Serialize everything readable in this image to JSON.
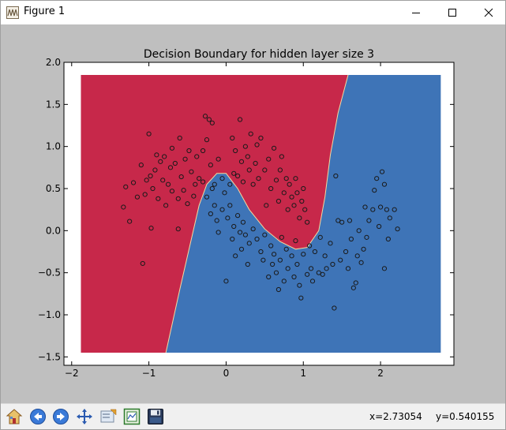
{
  "window": {
    "title": "Figure 1"
  },
  "chart_data": {
    "type": "scatter",
    "title": "Decision Boundary for hidden layer size 3",
    "xlim": [
      -2.1,
      2.95
    ],
    "ylim": [
      -1.6,
      2.0
    ],
    "x_ticks": [
      -2,
      -1,
      0,
      1,
      2
    ],
    "y_ticks": [
      -1.5,
      -1.0,
      -0.5,
      0.0,
      0.5,
      1.0,
      1.5,
      2.0
    ],
    "x_tick_labels": [
      "−2",
      "−1",
      "0",
      "1",
      "2"
    ],
    "y_tick_labels": [
      "−1.5",
      "−1.0",
      "−0.5",
      "0.0",
      "0.5",
      "1.0",
      "1.5",
      "2.0"
    ],
    "region_extent": {
      "x": [
        -1.88,
        2.78
      ],
      "y": [
        -1.45,
        1.85
      ]
    },
    "region_colors": {
      "class_0": "#c7284a",
      "class_1": "#3e74b7"
    },
    "boundary": [
      [
        -0.78,
        -1.45
      ],
      [
        -0.6,
        -0.7
      ],
      [
        -0.45,
        -0.1
      ],
      [
        -0.35,
        0.3
      ],
      [
        -0.25,
        0.55
      ],
      [
        -0.12,
        0.68
      ],
      [
        0.0,
        0.68
      ],
      [
        0.15,
        0.5
      ],
      [
        0.3,
        0.25
      ],
      [
        0.5,
        0.02
      ],
      [
        0.7,
        -0.13
      ],
      [
        0.9,
        -0.22
      ],
      [
        1.05,
        -0.2
      ],
      [
        1.2,
        0.0
      ],
      [
        1.28,
        0.4
      ],
      [
        1.35,
        0.9
      ],
      [
        1.45,
        1.4
      ],
      [
        1.58,
        1.85
      ]
    ],
    "point_color": "#1a1a1a",
    "points": [
      [
        -1.33,
        0.28
      ],
      [
        -1.3,
        0.52
      ],
      [
        -1.25,
        0.11
      ],
      [
        -1.2,
        0.57
      ],
      [
        -1.15,
        0.4
      ],
      [
        -1.1,
        0.78
      ],
      [
        -1.08,
        -0.39
      ],
      [
        -1.05,
        0.43
      ],
      [
        -1.03,
        0.6
      ],
      [
        -1.0,
        1.15
      ],
      [
        -0.98,
        0.65
      ],
      [
        -0.97,
        0.03
      ],
      [
        -0.95,
        0.5
      ],
      [
        -0.92,
        0.72
      ],
      [
        -0.9,
        0.9
      ],
      [
        -0.88,
        0.38
      ],
      [
        -0.85,
        0.82
      ],
      [
        -0.82,
        0.6
      ],
      [
        -0.8,
        0.88
      ],
      [
        -0.78,
        0.3
      ],
      [
        -0.75,
        0.55
      ],
      [
        -0.72,
        0.75
      ],
      [
        -0.7,
        0.98
      ],
      [
        -0.7,
        0.47
      ],
      [
        -0.66,
        0.8
      ],
      [
        -0.62,
        0.38
      ],
      [
        -0.6,
        1.1
      ],
      [
        -0.58,
        0.64
      ],
      [
        -0.55,
        0.48
      ],
      [
        -0.53,
        0.85
      ],
      [
        -0.5,
        0.32
      ],
      [
        -0.48,
        0.95
      ],
      [
        -0.45,
        0.7
      ],
      [
        -0.42,
        0.41
      ],
      [
        -0.4,
        0.55
      ],
      [
        -0.38,
        0.88
      ],
      [
        -0.35,
        0.62
      ],
      [
        -0.3,
        0.95
      ],
      [
        -0.27,
        1.36
      ],
      [
        -0.25,
        1.08
      ],
      [
        -0.22,
        1.32
      ],
      [
        -0.2,
        0.78
      ],
      [
        -0.18,
        1.28
      ],
      [
        -0.15,
        0.55
      ],
      [
        -0.1,
        0.85
      ],
      [
        -0.05,
        0.62
      ],
      [
        0.05,
        0.55
      ],
      [
        0.08,
        1.1
      ],
      [
        0.1,
        0.68
      ],
      [
        0.12,
        0.95
      ],
      [
        0.15,
        0.65
      ],
      [
        0.18,
        1.32
      ],
      [
        0.2,
        0.82
      ],
      [
        0.22,
        0.58
      ],
      [
        0.25,
        1.0
      ],
      [
        0.28,
        0.88
      ],
      [
        0.3,
        0.72
      ],
      [
        0.32,
        1.15
      ],
      [
        0.35,
        0.55
      ],
      [
        0.38,
        0.8
      ],
      [
        0.4,
        1.02
      ],
      [
        0.42,
        0.62
      ],
      [
        0.45,
        1.1
      ],
      [
        0.5,
        0.72
      ],
      [
        0.52,
        0.3
      ],
      [
        0.55,
        0.85
      ],
      [
        0.58,
        0.5
      ],
      [
        0.62,
        0.98
      ],
      [
        0.65,
        0.6
      ],
      [
        0.68,
        0.35
      ],
      [
        0.7,
        0.72
      ],
      [
        0.72,
        0.88
      ],
      [
        0.75,
        0.45
      ],
      [
        0.78,
        0.62
      ],
      [
        0.8,
        0.25
      ],
      [
        0.82,
        0.55
      ],
      [
        0.85,
        0.4
      ],
      [
        0.88,
        0.3
      ],
      [
        0.9,
        0.62
      ],
      [
        0.92,
        0.45
      ],
      [
        0.95,
        0.15
      ],
      [
        0.98,
        0.35
      ],
      [
        1.0,
        0.5
      ],
      [
        1.02,
        0.25
      ],
      [
        1.05,
        0.1
      ],
      [
        -0.62,
        0.02
      ],
      [
        -0.3,
        0.58
      ],
      [
        -0.25,
        0.4
      ],
      [
        -0.2,
        0.2
      ],
      [
        -0.18,
        0.5
      ],
      [
        -0.15,
        0.3
      ],
      [
        -0.12,
        0.12
      ],
      [
        -0.1,
        -0.02
      ],
      [
        -0.05,
        0.25
      ],
      [
        -0.02,
        0.45
      ],
      [
        0.0,
        -0.6
      ],
      [
        0.02,
        0.15
      ],
      [
        0.05,
        0.3
      ],
      [
        0.08,
        -0.1
      ],
      [
        0.1,
        0.05
      ],
      [
        0.12,
        -0.3
      ],
      [
        0.15,
        0.18
      ],
      [
        0.18,
        -0.02
      ],
      [
        0.2,
        -0.22
      ],
      [
        0.22,
        0.1
      ],
      [
        0.25,
        -0.05
      ],
      [
        0.28,
        -0.4
      ],
      [
        0.3,
        -0.15
      ],
      [
        0.35,
        0.02
      ],
      [
        0.4,
        -0.1
      ],
      [
        0.45,
        -0.25
      ],
      [
        0.48,
        -0.35
      ],
      [
        0.5,
        -0.05
      ],
      [
        0.55,
        -0.55
      ],
      [
        0.58,
        -0.18
      ],
      [
        0.6,
        -0.4
      ],
      [
        0.62,
        -0.28
      ],
      [
        0.65,
        -0.5
      ],
      [
        0.68,
        -0.7
      ],
      [
        0.7,
        -0.35
      ],
      [
        0.72,
        -0.08
      ],
      [
        0.75,
        -0.6
      ],
      [
        0.78,
        -0.22
      ],
      [
        0.8,
        -0.45
      ],
      [
        0.85,
        -0.3
      ],
      [
        0.88,
        -0.55
      ],
      [
        0.9,
        -0.12
      ],
      [
        0.92,
        -0.4
      ],
      [
        0.95,
        -0.65
      ],
      [
        0.97,
        -0.8
      ],
      [
        1.0,
        -0.28
      ],
      [
        1.05,
        -0.52
      ],
      [
        1.08,
        -0.18
      ],
      [
        1.1,
        -0.45
      ],
      [
        1.12,
        -0.6
      ],
      [
        1.15,
        -0.25
      ],
      [
        1.2,
        -0.5
      ],
      [
        1.22,
        -0.08
      ],
      [
        1.25,
        -0.52
      ],
      [
        1.28,
        -0.3
      ],
      [
        1.3,
        -0.45
      ],
      [
        1.35,
        -0.15
      ],
      [
        1.38,
        -0.4
      ],
      [
        1.4,
        -0.92
      ],
      [
        1.42,
        0.65
      ],
      [
        1.45,
        0.12
      ],
      [
        1.48,
        -0.35
      ],
      [
        1.5,
        0.1
      ],
      [
        1.55,
        -0.25
      ],
      [
        1.58,
        -0.45
      ],
      [
        1.6,
        0.12
      ],
      [
        1.62,
        -0.1
      ],
      [
        1.65,
        -0.68
      ],
      [
        1.68,
        -0.62
      ],
      [
        1.7,
        -0.3
      ],
      [
        1.72,
        0.0
      ],
      [
        1.75,
        -0.38
      ],
      [
        1.78,
        -0.22
      ],
      [
        1.8,
        0.28
      ],
      [
        1.82,
        -0.08
      ],
      [
        1.85,
        0.12
      ],
      [
        1.9,
        0.25
      ],
      [
        1.92,
        0.48
      ],
      [
        1.95,
        0.62
      ],
      [
        1.98,
        0.05
      ],
      [
        2.0,
        0.28
      ],
      [
        2.02,
        0.7
      ],
      [
        2.05,
        0.55
      ],
      [
        2.05,
        -0.45
      ],
      [
        2.08,
        0.25
      ],
      [
        2.1,
        -0.1
      ],
      [
        2.12,
        0.15
      ],
      [
        2.18,
        0.25
      ],
      [
        2.22,
        0.02
      ]
    ]
  },
  "status": {
    "x_readout": "x=2.73054",
    "y_readout": "y=0.540155"
  },
  "toolbar": {
    "icons": [
      "home-icon",
      "back-arrow-icon",
      "forward-arrow-icon",
      "pan-move-icon",
      "zoom-rect-icon",
      "configure-subplots-icon",
      "save-disk-icon"
    ]
  }
}
